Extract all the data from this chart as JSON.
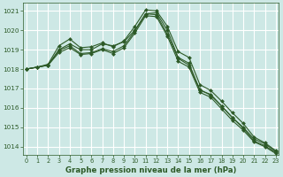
{
  "title": "Graphe pression niveau de la mer (hPa)",
  "bg_color": "#cde8e5",
  "grid_color": "#ffffff",
  "line_color": "#2d5a27",
  "marker_color": "#2d5a27",
  "xlim": [
    -0.3,
    23.3
  ],
  "ylim": [
    1013.6,
    1021.4
  ],
  "yticks": [
    1014,
    1015,
    1016,
    1017,
    1018,
    1019,
    1020,
    1021
  ],
  "xticks": [
    0,
    1,
    2,
    3,
    4,
    5,
    6,
    7,
    8,
    9,
    10,
    11,
    12,
    13,
    14,
    15,
    16,
    17,
    18,
    19,
    20,
    21,
    22,
    23
  ],
  "series": [
    [
      1018.0,
      1018.1,
      1018.2,
      1019.0,
      1019.3,
      1019.0,
      1019.0,
      1019.3,
      1019.2,
      1019.4,
      1020.0,
      1020.85,
      1020.9,
      1020.0,
      1018.6,
      1018.3,
      1016.9,
      1016.7,
      1016.1,
      1015.5,
      1015.0,
      1014.4,
      1014.15,
      1013.75
    ],
    [
      1018.0,
      1018.1,
      1018.25,
      1019.2,
      1019.55,
      1019.1,
      1019.15,
      1019.35,
      1019.15,
      1019.45,
      1020.2,
      1021.05,
      1021.0,
      1020.2,
      1018.9,
      1018.6,
      1017.2,
      1016.9,
      1016.35,
      1015.75,
      1015.2,
      1014.5,
      1014.2,
      1013.8
    ],
    [
      1018.0,
      1018.1,
      1018.2,
      1018.85,
      1019.1,
      1018.75,
      1018.8,
      1019.0,
      1018.8,
      1019.1,
      1019.85,
      1020.75,
      1020.7,
      1019.7,
      1018.4,
      1018.1,
      1016.8,
      1016.55,
      1015.95,
      1015.35,
      1014.85,
      1014.25,
      1014.0,
      1013.65
    ],
    [
      1018.0,
      1018.1,
      1018.2,
      1018.95,
      1019.2,
      1018.8,
      1018.85,
      1019.05,
      1018.9,
      1019.2,
      1019.95,
      1020.85,
      1020.8,
      1019.8,
      1018.55,
      1018.2,
      1016.95,
      1016.65,
      1016.1,
      1015.5,
      1014.95,
      1014.3,
      1014.05,
      1013.7
    ]
  ]
}
